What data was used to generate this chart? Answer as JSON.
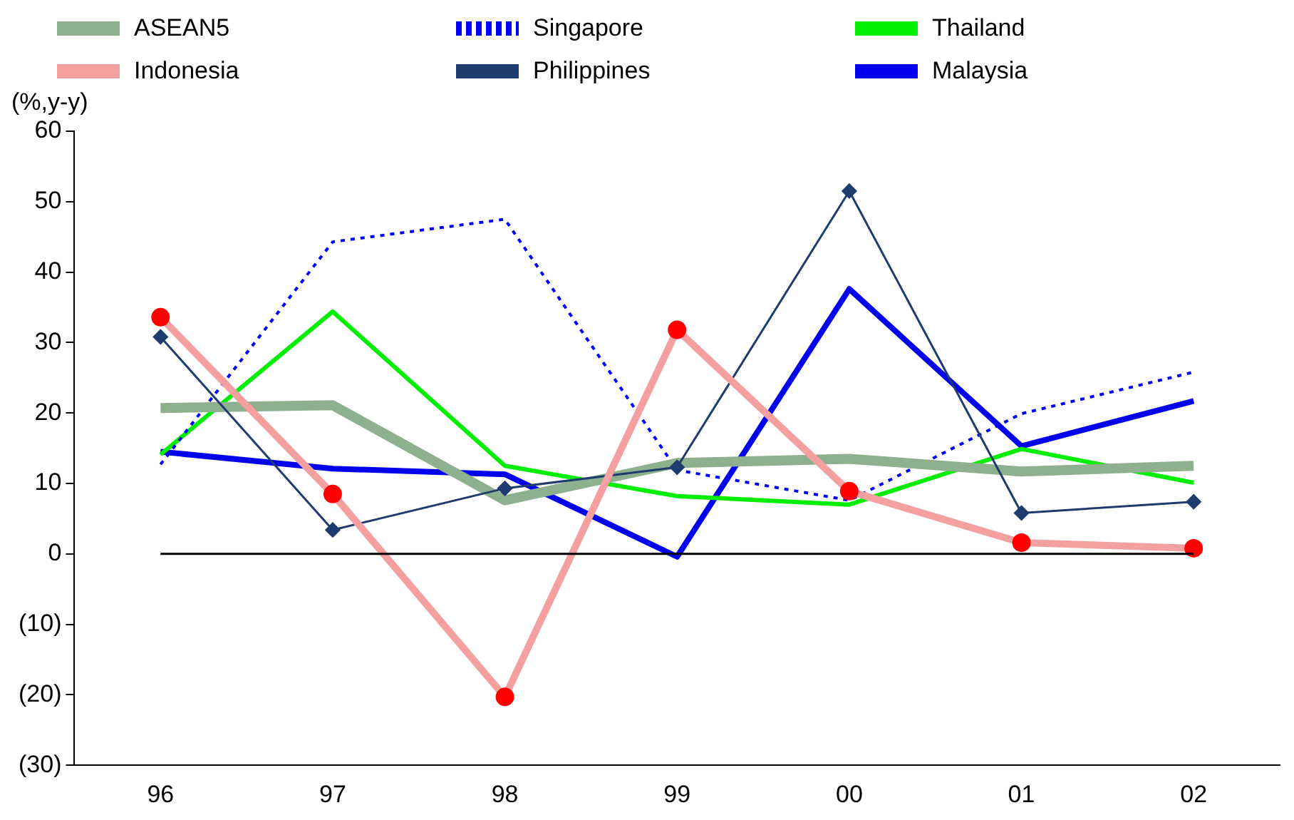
{
  "chart_data": {
    "type": "line",
    "ylabel": "(%,y-y)",
    "categories": [
      "96",
      "97",
      "98",
      "99",
      "00",
      "01",
      "02"
    ],
    "series": [
      {
        "name": "ASEAN5",
        "color": "#8fb08f",
        "values": [
          20.7,
          21.1,
          7.6,
          12.9,
          13.5,
          11.7,
          12.5
        ]
      },
      {
        "name": "Singapore",
        "color": "#0000ff",
        "line_style": "dotted",
        "values": [
          12.7,
          44.3,
          47.5,
          11.9,
          7.6,
          19.9,
          25.8
        ]
      },
      {
        "name": "Thailand",
        "color": "#00ee00",
        "values": [
          14.1,
          34.4,
          12.5,
          8.2,
          7.0,
          14.9,
          10.1
        ]
      },
      {
        "name": "Indonesia",
        "color": "#f4a0a0",
        "marker": "circle",
        "values": [
          33.6,
          8.5,
          -20.3,
          31.8,
          8.9,
          1.6,
          0.8
        ]
      },
      {
        "name": "Philippines",
        "color": "#1f3c6e",
        "marker": "diamond",
        "values": [
          30.8,
          3.4,
          9.3,
          12.3,
          51.5,
          5.8,
          7.4
        ]
      },
      {
        "name": "Malaysia",
        "color": "#0000ee",
        "values": [
          14.5,
          12.1,
          11.3,
          -0.4,
          37.6,
          15.3,
          21.7
        ]
      }
    ],
    "ylim": [
      -30,
      60
    ],
    "yticks": [
      {
        "value": -30,
        "label": "(30)"
      },
      {
        "value": -20,
        "label": "(20)"
      },
      {
        "value": -10,
        "label": "(10)"
      },
      0,
      10,
      20,
      30,
      40,
      50,
      60
    ],
    "ref_lines": [
      {
        "axis": "y",
        "value": 0,
        "color": "#000000"
      }
    ],
    "grid": false,
    "legend": "top",
    "marker": "none",
    "line_style": "solid"
  }
}
